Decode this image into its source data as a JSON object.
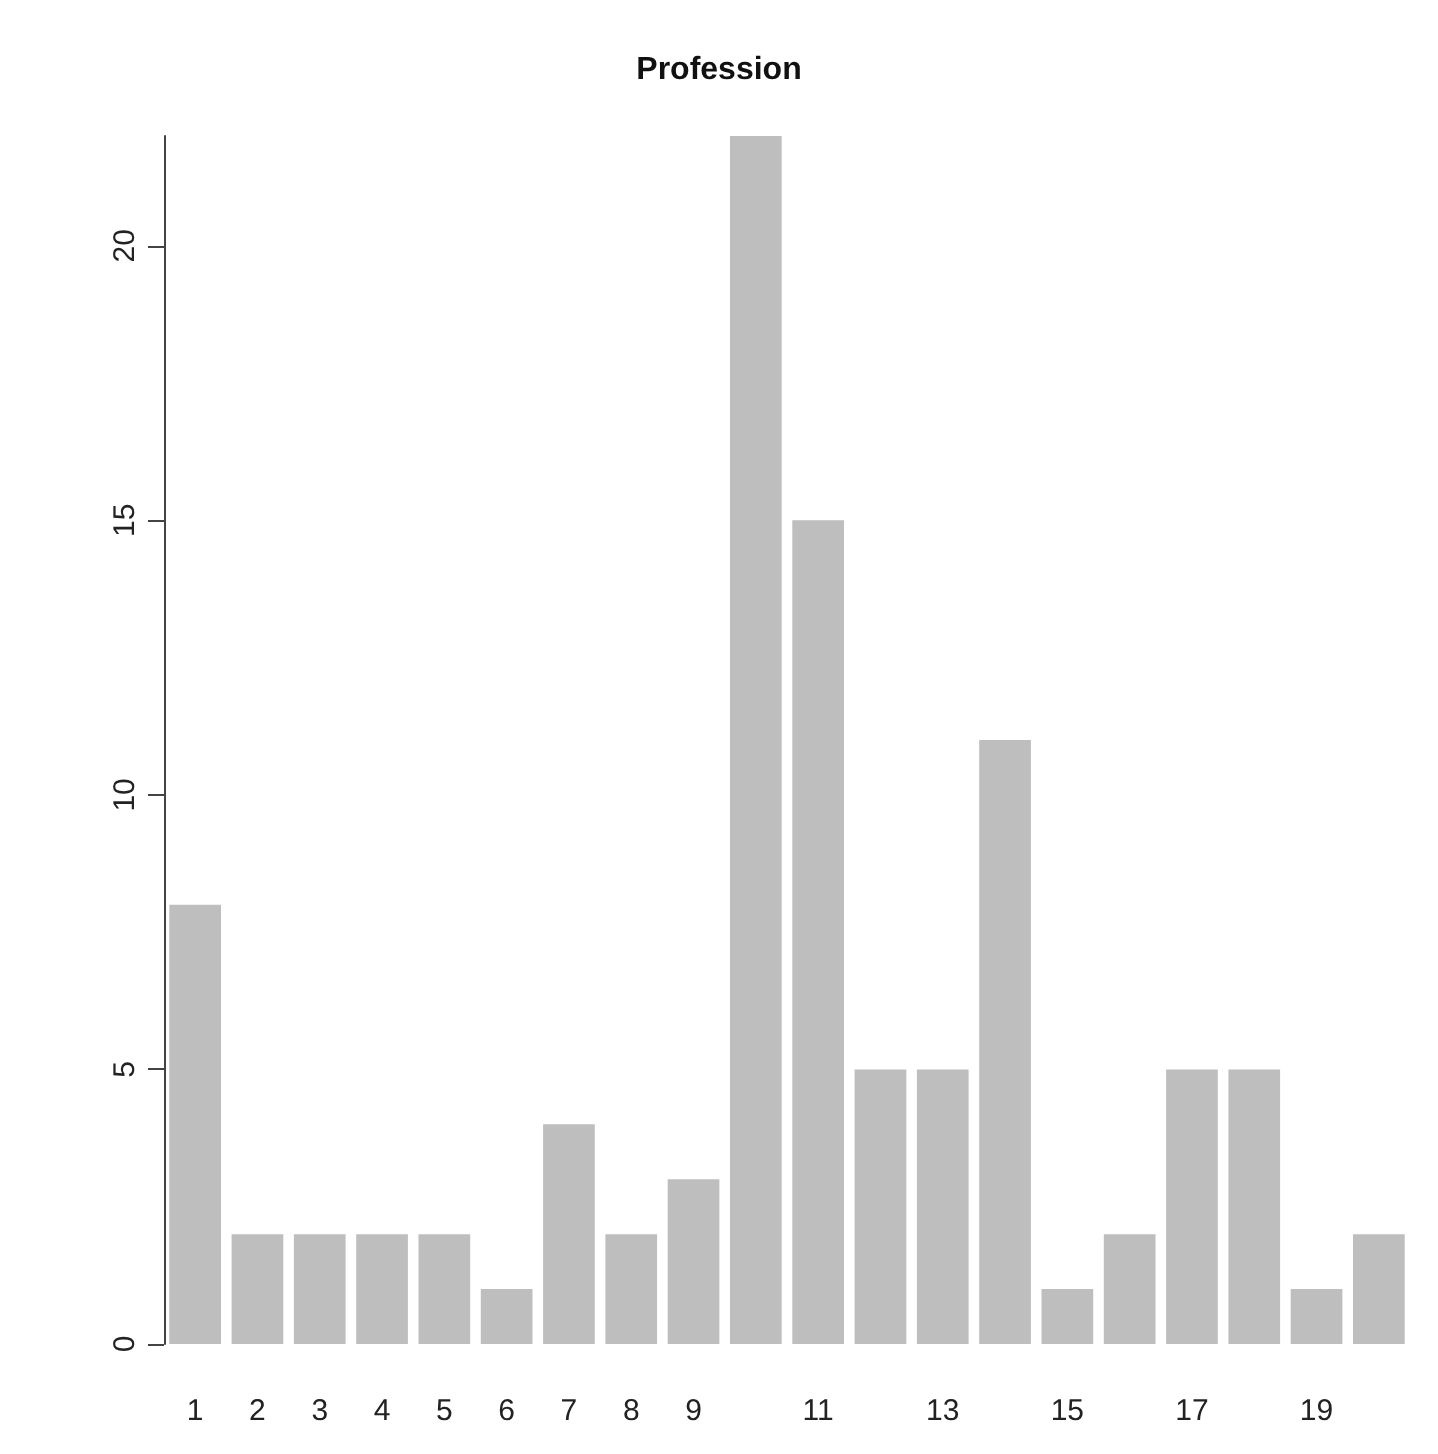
{
  "chart_data": {
    "type": "bar",
    "title": "Profession",
    "categories": [
      "1",
      "2",
      "3",
      "4",
      "5",
      "6",
      "7",
      "8",
      "9",
      null,
      "11",
      null,
      "13",
      null,
      "15",
      null,
      "17",
      null,
      "19",
      null
    ],
    "values": [
      8,
      2,
      2,
      2,
      2,
      1,
      4,
      2,
      3,
      22,
      15,
      5,
      5,
      11,
      1,
      2,
      5,
      5,
      1,
      2
    ],
    "color": "#bebebe",
    "ylim": [
      0,
      22
    ],
    "yticks": [
      0,
      5,
      10,
      15,
      20
    ],
    "grid": false
  }
}
